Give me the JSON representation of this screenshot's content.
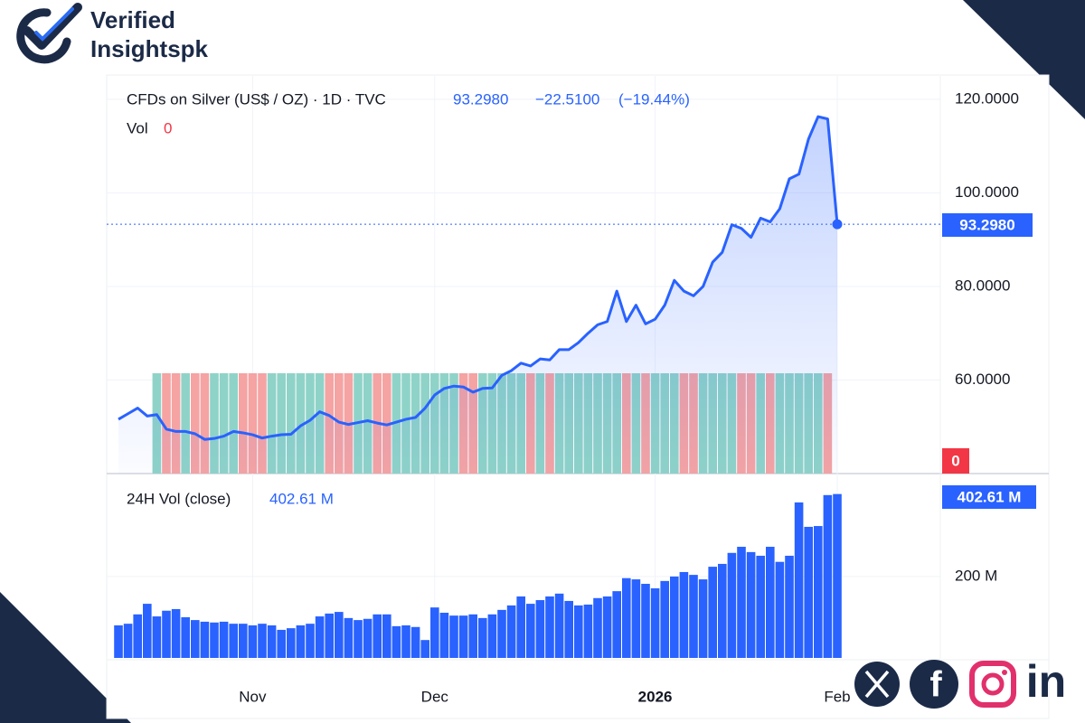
{
  "brand": {
    "line1": "Verified",
    "line2": "Insightspk"
  },
  "social": {
    "facebook": "f",
    "linkedin": "in"
  },
  "chart_data": [
    {
      "type": "line",
      "title": "CFDs on Silver (US$ / OZ) · 1D · TVC",
      "last_value": {
        "value": 93.298,
        "label": "93.2980"
      },
      "change": {
        "value": -22.51,
        "label": "−22.5100"
      },
      "change_pct": {
        "value": -19.44,
        "label": "(−19.44%)"
      },
      "volume_name": "Vol",
      "volume_value": 0,
      "series": [
        {
          "name": "CFDs on Silver",
          "color": "#2962ff",
          "values": [
            51.6,
            52.8,
            54.0,
            52.3,
            52.6,
            49.5,
            49.0,
            49.0,
            48.5,
            47.3,
            47.5,
            48.0,
            49.0,
            48.7,
            48.3,
            47.6,
            48.0,
            48.3,
            48.4,
            50.2,
            51.4,
            53.2,
            52.4,
            51.0,
            50.5,
            50.9,
            51.3,
            50.8,
            50.4,
            51.0,
            51.6,
            52.0,
            54.0,
            56.8,
            58.2,
            58.7,
            58.5,
            57.4,
            58.2,
            58.3,
            61.0,
            62.0,
            63.6,
            63.0,
            64.5,
            64.3,
            66.5,
            66.5,
            68.0,
            70.0,
            71.8,
            72.5,
            79.0,
            72.5,
            76.0,
            72.0,
            73.0,
            76.0,
            81.3,
            79.0,
            78.0,
            80.0,
            85.2,
            87.3,
            93.2,
            92.4,
            90.5,
            94.6,
            93.8,
            96.6,
            103.0,
            104.0,
            111.5,
            116.3,
            115.8,
            93.298
          ]
        }
      ],
      "ylim": [
        40,
        125
      ],
      "yticks": [
        {
          "value": 60,
          "label": "60.0000"
        },
        {
          "value": 80,
          "label": "80.0000"
        },
        {
          "value": 100,
          "label": "100.0000"
        },
        {
          "value": 120,
          "label": "120.0000"
        }
      ],
      "grid": true
    },
    {
      "type": "bar",
      "title": "24H Vol (close)",
      "last_value": {
        "value": 402.61,
        "label": "402.61 M"
      },
      "categories": [
        null,
        null,
        null,
        null,
        null,
        null,
        null,
        null,
        null,
        null,
        null,
        null,
        null,
        null,
        "Nov",
        null,
        null,
        null,
        null,
        null,
        null,
        null,
        null,
        null,
        null,
        null,
        null,
        null,
        null,
        null,
        null,
        null,
        null,
        "Dec",
        null,
        null,
        null,
        null,
        null,
        null,
        null,
        null,
        null,
        null,
        null,
        null,
        null,
        null,
        null,
        null,
        null,
        null,
        null,
        null,
        null,
        null,
        "2026",
        null,
        null,
        null,
        null,
        null,
        null,
        null,
        null,
        null,
        null,
        null,
        null,
        null,
        null,
        null,
        null,
        null,
        null,
        "Feb"
      ],
      "series": [
        {
          "name": "24H Vol (close)",
          "color": "#2962ff",
          "values": [
            80,
            84,
            107,
            133,
            102,
            116,
            120,
            100,
            93,
            89,
            87,
            89,
            84,
            84,
            80,
            84,
            80,
            69,
            73,
            80,
            84,
            102,
            109,
            113,
            98,
            93,
            96,
            107,
            107,
            78,
            80,
            76,
            44,
            124,
            111,
            104,
            104,
            107,
            98,
            107,
            118,
            129,
            151,
            133,
            142,
            151,
            158,
            140,
            129,
            131,
            147,
            151,
            164,
            196,
            193,
            182,
            171,
            189,
            200,
            211,
            204,
            193,
            224,
            231,
            258,
            273,
            260,
            251,
            273,
            236,
            251,
            382,
            322,
            324,
            400,
            402.61
          ]
        }
      ],
      "ylim": [
        0,
        444
      ],
      "yticks": [
        {
          "value": 200,
          "label": "200 M"
        }
      ],
      "grid": true
    }
  ]
}
